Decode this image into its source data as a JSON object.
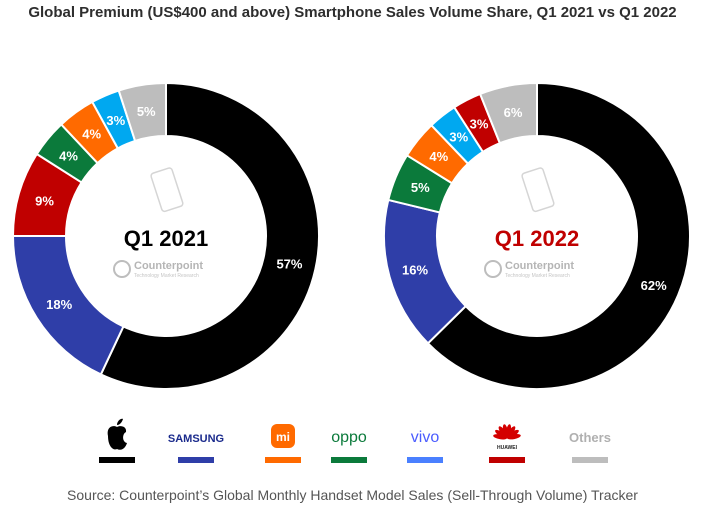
{
  "title": "Global Premium (US$400 and above) Smartphone Sales Volume Share, Q1 2021 vs Q1 2022",
  "source": "Source: Counterpoint’s Global Monthly Handset Model Sales (Sell-Through Volume) Tracker",
  "watermark": {
    "name": "Counterpoint",
    "tagline": "Technology Market Research"
  },
  "legend": {
    "placement": "bottom",
    "brands": [
      {
        "name": "Apple",
        "color": "#000000",
        "logo": "apple-icon"
      },
      {
        "name": "SAMSUNG",
        "color": "#2f3ea8",
        "logo": "samsung-wordmark"
      },
      {
        "name": "Xiaomi",
        "color": "#ff6a00",
        "logo": "mi-icon"
      },
      {
        "name": "oppo",
        "color": "#0b7a3b",
        "logo": "oppo-wordmark"
      },
      {
        "name": "vivo",
        "color": "#4a80ff",
        "logo": "vivo-wordmark"
      },
      {
        "name": "HUAWEI",
        "color": "#c00000",
        "logo": "huawei-icon"
      },
      {
        "name": "Others",
        "color": "#bdbdbd",
        "logo": "others-text"
      }
    ]
  },
  "chart_data": [
    {
      "type": "pie",
      "variant": "donut",
      "center_label": "Q1 2021",
      "center_label_color": "#000000",
      "slices": [
        {
          "brand": "Apple",
          "value": 57,
          "label": "57%",
          "color": "#000000"
        },
        {
          "brand": "Samsung",
          "value": 18,
          "label": "18%",
          "color": "#2f3ea8"
        },
        {
          "brand": "Huawei",
          "value": 9,
          "label": "9%",
          "color": "#c00000"
        },
        {
          "brand": "Oppo",
          "value": 4,
          "label": "4%",
          "color": "#0b7a3b"
        },
        {
          "brand": "Xiaomi",
          "value": 4,
          "label": "4%",
          "color": "#ff6a00"
        },
        {
          "brand": "vivo",
          "value": 3,
          "label": "3%",
          "color": "#00a8f0"
        },
        {
          "brand": "Others",
          "value": 5,
          "label": "5%",
          "color": "#bdbdbd"
        }
      ]
    },
    {
      "type": "pie",
      "variant": "donut",
      "center_label": "Q1 2022",
      "center_label_color": "#c00000",
      "slices": [
        {
          "brand": "Apple",
          "value": 62,
          "label": "62%",
          "color": "#000000"
        },
        {
          "brand": "Samsung",
          "value": 16,
          "label": "16%",
          "color": "#2f3ea8"
        },
        {
          "brand": "Oppo",
          "value": 5,
          "label": "5%",
          "color": "#0b7a3b"
        },
        {
          "brand": "Xiaomi",
          "value": 4,
          "label": "4%",
          "color": "#ff6a00"
        },
        {
          "brand": "vivo",
          "value": 3,
          "label": "3%",
          "color": "#00a8f0"
        },
        {
          "brand": "Huawei",
          "value": 3,
          "label": "3%",
          "color": "#c00000"
        },
        {
          "brand": "Others",
          "value": 6,
          "label": "6%",
          "color": "#bdbdbd"
        }
      ]
    }
  ]
}
